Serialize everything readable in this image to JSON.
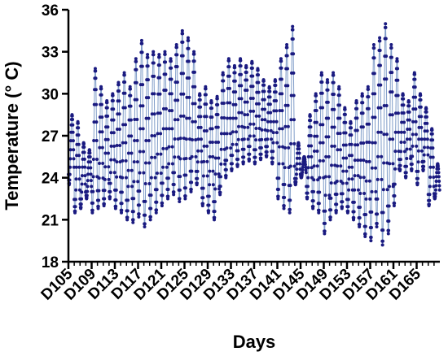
{
  "chart_data": {
    "type": "line",
    "title": "",
    "xlabel": "Days",
    "ylabel": "Temperature (° C)",
    "ylim": [
      18,
      36
    ],
    "yticks": [
      18,
      21,
      24,
      27,
      30,
      33,
      36
    ],
    "xlim": [
      105,
      169
    ],
    "xticks": [
      105,
      109,
      113,
      117,
      121,
      125,
      129,
      133,
      137,
      141,
      145,
      149,
      153,
      157,
      161,
      165
    ],
    "xtick_labels": [
      "D105",
      "D109",
      "D113",
      "D117",
      "D121",
      "D125",
      "D129",
      "D133",
      "D137",
      "D141",
      "D145",
      "D149",
      "D153",
      "D157",
      "D161",
      "D165"
    ],
    "grid": false,
    "legend": "none",
    "line_color": "#7f9cc8",
    "marker_color": "#1a1a80",
    "readings_per_day": 24,
    "days": [
      105,
      106,
      107,
      108,
      109,
      110,
      111,
      112,
      113,
      114,
      115,
      116,
      117,
      118,
      119,
      120,
      121,
      122,
      123,
      124,
      125,
      126,
      127,
      128,
      129,
      130,
      131,
      132,
      133,
      134,
      135,
      136,
      137,
      138,
      139,
      140,
      141,
      142,
      143,
      144,
      145,
      146,
      147,
      148,
      149,
      150,
      151,
      152,
      153,
      154,
      155,
      156,
      157,
      158,
      159,
      160,
      161,
      162,
      163,
      164,
      165,
      166,
      167,
      168
    ],
    "daily_min": [
      23.5,
      21.5,
      21.8,
      22.5,
      21.5,
      21.8,
      22.0,
      22.5,
      21.8,
      21.5,
      21.0,
      20.8,
      21.2,
      20.5,
      21.0,
      21.5,
      22.0,
      22.5,
      22.8,
      22.3,
      22.5,
      23.0,
      23.5,
      22.0,
      21.5,
      21.0,
      22.8,
      24.0,
      24.5,
      24.8,
      25.0,
      25.2,
      25.0,
      25.3,
      25.5,
      25.0,
      22.5,
      21.8,
      21.5,
      23.5,
      24.0,
      22.5,
      21.8,
      21.5,
      20.0,
      21.0,
      21.5,
      21.8,
      21.5,
      21.0,
      20.5,
      19.8,
      19.5,
      20.5,
      19.2,
      20.0,
      22.0,
      24.5,
      24.0,
      24.5,
      23.5,
      24.5,
      22.0,
      22.5
    ],
    "daily_max": [
      28.5,
      28.0,
      26.5,
      26.0,
      31.8,
      30.5,
      29.5,
      30.0,
      30.8,
      31.5,
      30.5,
      32.5,
      33.8,
      32.8,
      33.0,
      32.8,
      33.0,
      32.5,
      33.5,
      34.5,
      34.0,
      33.0,
      30.0,
      30.5,
      29.5,
      29.8,
      31.5,
      32.5,
      32.0,
      32.5,
      32.0,
      32.3,
      31.8,
      31.0,
      30.5,
      31.0,
      32.5,
      33.5,
      34.8,
      26.5,
      25.5,
      28.5,
      30.0,
      31.5,
      31.0,
      31.5,
      30.5,
      29.0,
      28.0,
      29.5,
      30.0,
      30.5,
      33.5,
      34.0,
      35.0,
      33.5,
      32.5,
      30.0,
      29.5,
      31.5,
      30.0,
      29.0,
      27.5,
      25.0
    ]
  }
}
